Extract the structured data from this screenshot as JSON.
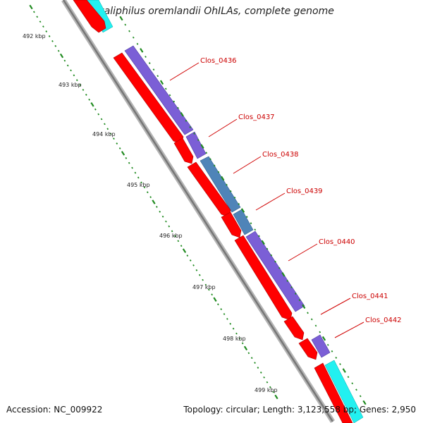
{
  "title": "Alkaliphilus oremlandii OhILAs, complete genome",
  "footer": {
    "accession": "Accession: NC_009922",
    "stats": "Topology: circular; Length: 3,123,558 bp; Genes: 2,950"
  },
  "scale_labels": [
    "492 kbp",
    "493 kbp",
    "494 kbp",
    "495 kbp",
    "496 kbp",
    "497 kbp",
    "498 kbp",
    "499 kbp"
  ],
  "gene_labels": [
    "Clos_0436",
    "Clos_0437",
    "Clos_0438",
    "Clos_0439",
    "Clos_0440",
    "Clos_0441",
    "Clos_0442"
  ],
  "colors": {
    "forward_cds": "#ff0000",
    "cog_purple": "#7b5fd6",
    "cog_steelblue": "#4f84b8",
    "cog_cyan": "#22f0f0",
    "backbone": "#8c8c8c",
    "tick": "#1f8a1f",
    "label": "#cc0000"
  }
}
